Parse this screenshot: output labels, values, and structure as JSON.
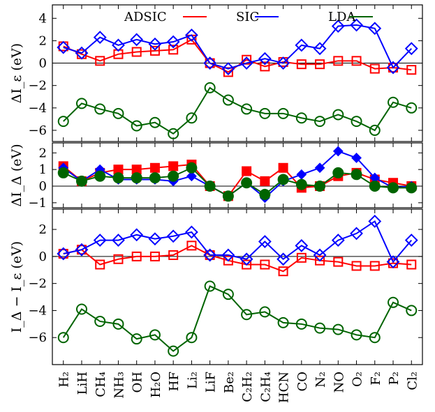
{
  "chart_data": [
    {
      "type": "line",
      "ylabel": "ΔI_ε (eV)",
      "ylim": [
        -7,
        5.2
      ],
      "yticks": [
        4,
        2,
        0,
        -2,
        -4,
        -6
      ],
      "zero_line": true,
      "legend": {
        "placement": "top",
        "entries": [
          {
            "name": "ADSIC",
            "color": "#ff0000"
          },
          {
            "name": "SIC",
            "color": "#0000ff"
          },
          {
            "name": "LDA",
            "color": "#006400"
          }
        ]
      },
      "series": [
        {
          "name": "ADSIC",
          "color": "#ff0000",
          "marker": "open-square",
          "values": [
            1.5,
            0.8,
            0.2,
            0.8,
            1.0,
            1.1,
            1.2,
            2.1,
            0.0,
            -0.8,
            0.3,
            -0.3,
            0.1,
            -0.1,
            -0.1,
            0.2,
            0.2,
            -0.5,
            -0.4,
            -0.6
          ]
        },
        {
          "name": "SIC",
          "color": "#0000ff",
          "marker": "open-diamond",
          "values": [
            1.4,
            0.9,
            2.3,
            1.6,
            2.1,
            1.7,
            1.9,
            2.5,
            0.0,
            -0.5,
            0.0,
            0.4,
            0.0,
            1.6,
            1.3,
            3.3,
            3.4,
            3.1,
            -0.4,
            1.3
          ]
        },
        {
          "name": "LDA",
          "color": "#006400",
          "marker": "open-circle",
          "values": [
            -5.2,
            -3.6,
            -4.1,
            -4.5,
            -5.6,
            -5.3,
            -6.3,
            -4.9,
            -2.2,
            -3.3,
            -4.1,
            -4.5,
            -4.5,
            -4.9,
            -5.2,
            -4.6,
            -5.2,
            -6.0,
            -3.5,
            -4.0
          ]
        }
      ]
    },
    {
      "type": "line",
      "ylabel": "ΔI_Δ (eV)",
      "ylim": [
        -1.3,
        2.6
      ],
      "yticks": [
        2,
        1,
        0,
        -1
      ],
      "zero_line": true,
      "series": [
        {
          "name": "ADSIC",
          "color": "#ff0000",
          "marker": "filled-square",
          "values": [
            1.2,
            0.3,
            0.8,
            1.0,
            1.0,
            1.1,
            1.2,
            1.3,
            0.0,
            -0.6,
            0.9,
            0.3,
            1.1,
            -0.1,
            0.0,
            0.6,
            0.8,
            0.4,
            0.2,
            0.0
          ]
        },
        {
          "name": "SIC",
          "color": "#0000ff",
          "marker": "filled-diamond",
          "values": [
            1.1,
            0.3,
            1.0,
            0.4,
            0.4,
            0.4,
            0.3,
            0.6,
            0.0,
            -0.6,
            0.2,
            -0.7,
            0.3,
            0.7,
            1.1,
            2.1,
            1.7,
            0.5,
            -0.1,
            0.0
          ]
        },
        {
          "name": "LDA",
          "color": "#006400",
          "marker": "filled-circle",
          "values": [
            0.8,
            0.3,
            0.6,
            0.5,
            0.5,
            0.5,
            0.6,
            1.1,
            0.0,
            -0.6,
            0.2,
            -0.5,
            0.4,
            0.1,
            0.0,
            0.8,
            0.7,
            0.0,
            -0.1,
            -0.1
          ]
        }
      ]
    },
    {
      "type": "line",
      "ylabel": "I_Δ − I_ε (eV)",
      "ylim": [
        -8,
        3.5
      ],
      "yticks": [
        2,
        0,
        -2,
        -4,
        -6
      ],
      "zero_line": true,
      "series": [
        {
          "name": "ADSIC",
          "color": "#ff0000",
          "marker": "open-square",
          "values": [
            0.2,
            0.5,
            -0.6,
            -0.2,
            0.0,
            0.0,
            0.1,
            0.8,
            0.1,
            -0.3,
            -0.6,
            -0.6,
            -1.1,
            -0.1,
            -0.3,
            -0.4,
            -0.7,
            -0.7,
            -0.5,
            -0.6
          ]
        },
        {
          "name": "SIC",
          "color": "#0000ff",
          "marker": "open-diamond",
          "values": [
            0.2,
            0.5,
            1.2,
            1.2,
            1.6,
            1.3,
            1.5,
            1.8,
            0.1,
            0.1,
            -0.2,
            1.1,
            -0.2,
            0.8,
            0.1,
            1.2,
            1.7,
            2.6,
            -0.4,
            1.2
          ]
        },
        {
          "name": "LDA",
          "color": "#006400",
          "marker": "open-circle",
          "values": [
            -6.0,
            -3.9,
            -4.8,
            -5.0,
            -6.1,
            -5.8,
            -7.0,
            -6.0,
            -2.2,
            -2.8,
            -4.3,
            -4.1,
            -4.9,
            -5.0,
            -5.3,
            -5.4,
            -5.8,
            -6.0,
            -3.4,
            -4.0
          ]
        }
      ]
    }
  ],
  "categories": [
    "H₂",
    "LiH",
    "CH₄",
    "NH₃",
    "OH",
    "H₂O",
    "HF",
    "Li₂",
    "LiF",
    "Be₂",
    "C₂H₂",
    "C₂H₄",
    "HCN",
    "CO",
    "N₂",
    "NO",
    "O₂",
    "F₂",
    "P₂",
    "Cl₂"
  ]
}
